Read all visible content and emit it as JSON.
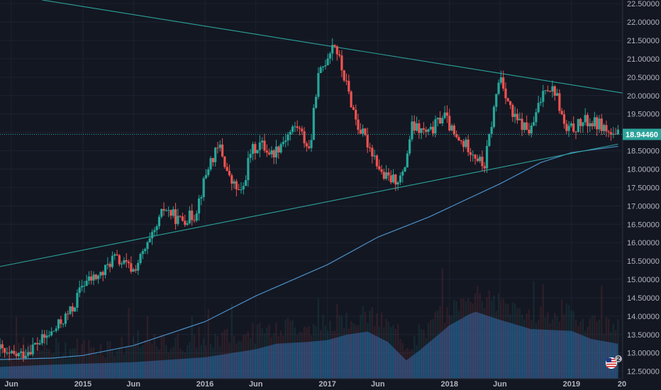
{
  "chart_data": {
    "type": "candlestick",
    "title": "",
    "y_axis": {
      "side": "right",
      "ylim": [
        12.3,
        22.6
      ],
      "ticks": [
        "12.50000",
        "13.00000",
        "13.50000",
        "14.00000",
        "14.50000",
        "15.00000",
        "15.50000",
        "16.00000",
        "16.50000",
        "17.00000",
        "17.50000",
        "18.00000",
        "18.50000",
        "19.00000",
        "19.50000",
        "20.00000",
        "20.50000",
        "21.00000",
        "21.50000",
        "22.00000",
        "22.50000"
      ]
    },
    "x_axis": {
      "range": [
        "2014-04-28",
        "2019-06-03"
      ],
      "ticks": [
        {
          "date": "2014-06-01",
          "label": "Jun"
        },
        {
          "date": "2015-01-01",
          "label": "2015"
        },
        {
          "date": "2015-06-01",
          "label": "Jun"
        },
        {
          "date": "2016-01-01",
          "label": "2016"
        },
        {
          "date": "2016-06-01",
          "label": "Jun"
        },
        {
          "date": "2017-01-01",
          "label": "2017"
        },
        {
          "date": "2017-06-01",
          "label": "Jun"
        },
        {
          "date": "2018-01-01",
          "label": "2018"
        },
        {
          "date": "2018-06-01",
          "label": "Jun"
        },
        {
          "date": "2019-01-01",
          "label": "2019"
        },
        {
          "date": "2019-06-01",
          "label": "20"
        }
      ]
    },
    "last_price": {
      "value": 18.9446,
      "label": "18.94460"
    },
    "colors": {
      "up": "#26a69a",
      "down": "#ef5350",
      "trendline": "#2ba39a",
      "moving_average": "#4a90c8",
      "volume_area": "#2962a0",
      "background": "#131722",
      "grid": "#1e2230"
    },
    "upper_trendline": [
      [
        "2014-09-01",
        22.6
      ],
      [
        "2019-06-03",
        20.07
      ]
    ],
    "lower_trendline": [
      [
        "2014-04-28",
        15.35
      ],
      [
        "2019-05-20",
        18.68
      ]
    ],
    "moving_average": [
      [
        "2014-04-28",
        12.82
      ],
      [
        "2014-10-01",
        12.86
      ],
      [
        "2015-01-01",
        12.93
      ],
      [
        "2015-06-01",
        13.2
      ],
      [
        "2016-01-01",
        13.85
      ],
      [
        "2016-06-01",
        14.55
      ],
      [
        "2017-01-01",
        15.4
      ],
      [
        "2017-06-01",
        16.15
      ],
      [
        "2017-11-01",
        16.7
      ],
      [
        "2018-06-01",
        17.6
      ],
      [
        "2018-10-01",
        18.18
      ],
      [
        "2019-01-01",
        18.45
      ],
      [
        "2019-05-20",
        18.62
      ]
    ],
    "volume_profile": [
      [
        "2014-04-28",
        12.62
      ],
      [
        "2014-10-01",
        12.68
      ],
      [
        "2015-06-01",
        12.75
      ],
      [
        "2016-01-01",
        12.88
      ],
      [
        "2016-06-01",
        13.1
      ],
      [
        "2016-08-01",
        13.25
      ],
      [
        "2016-11-01",
        13.3
      ],
      [
        "2017-01-01",
        13.35
      ],
      [
        "2017-03-01",
        13.5
      ],
      [
        "2017-05-01",
        13.58
      ],
      [
        "2017-07-01",
        13.3
      ],
      [
        "2017-08-25",
        12.8
      ],
      [
        "2017-10-01",
        13.05
      ],
      [
        "2018-01-01",
        13.75
      ],
      [
        "2018-03-01",
        14.05
      ],
      [
        "2018-03-20",
        14.12
      ],
      [
        "2018-06-01",
        13.9
      ],
      [
        "2018-09-01",
        13.65
      ],
      [
        "2019-01-01",
        13.6
      ],
      [
        "2019-03-01",
        13.38
      ],
      [
        "2019-05-20",
        13.25
      ]
    ],
    "price_anchors": [
      [
        "2014-04-28",
        13.1
      ],
      [
        "2014-05-20",
        12.9
      ],
      [
        "2014-07-01",
        12.95
      ],
      [
        "2014-10-01",
        13.55
      ],
      [
        "2014-12-01",
        14.2
      ],
      [
        "2015-01-01",
        14.9
      ],
      [
        "2015-03-01",
        15.15
      ],
      [
        "2015-04-01",
        15.6
      ],
      [
        "2015-06-01",
        15.25
      ],
      [
        "2015-08-01",
        16.2
      ],
      [
        "2015-09-01",
        16.95
      ],
      [
        "2015-10-15",
        16.6
      ],
      [
        "2015-12-01",
        16.75
      ],
      [
        "2016-01-15",
        18.2
      ],
      [
        "2016-02-15",
        18.6
      ],
      [
        "2016-03-15",
        17.7
      ],
      [
        "2016-04-20",
        17.3
      ],
      [
        "2016-05-15",
        18.45
      ],
      [
        "2016-06-15",
        18.7
      ],
      [
        "2016-07-20",
        18.4
      ],
      [
        "2016-09-01",
        18.9
      ],
      [
        "2016-10-01",
        19.2
      ],
      [
        "2016-11-10",
        18.5
      ],
      [
        "2016-12-01",
        20.4
      ],
      [
        "2017-01-20",
        21.5
      ],
      [
        "2017-02-20",
        20.5
      ],
      [
        "2017-04-01",
        19.2
      ],
      [
        "2017-05-20",
        18.4
      ],
      [
        "2017-06-15",
        17.8
      ],
      [
        "2017-07-15",
        17.7
      ],
      [
        "2017-08-15",
        17.8
      ],
      [
        "2017-09-10",
        19.15
      ],
      [
        "2017-11-01",
        18.95
      ],
      [
        "2017-12-15",
        19.5
      ],
      [
        "2018-01-20",
        18.8
      ],
      [
        "2018-03-01",
        18.6
      ],
      [
        "2018-04-15",
        18.05
      ],
      [
        "2018-06-01",
        20.6
      ],
      [
        "2018-07-10",
        19.4
      ],
      [
        "2018-09-01",
        19.0
      ],
      [
        "2018-10-15",
        20.3
      ],
      [
        "2018-11-15",
        20.1
      ],
      [
        "2018-12-15",
        19.0
      ],
      [
        "2019-02-10",
        19.3
      ],
      [
        "2019-04-01",
        19.2
      ],
      [
        "2019-05-10",
        18.8
      ],
      [
        "2019-05-20",
        18.94
      ]
    ]
  }
}
